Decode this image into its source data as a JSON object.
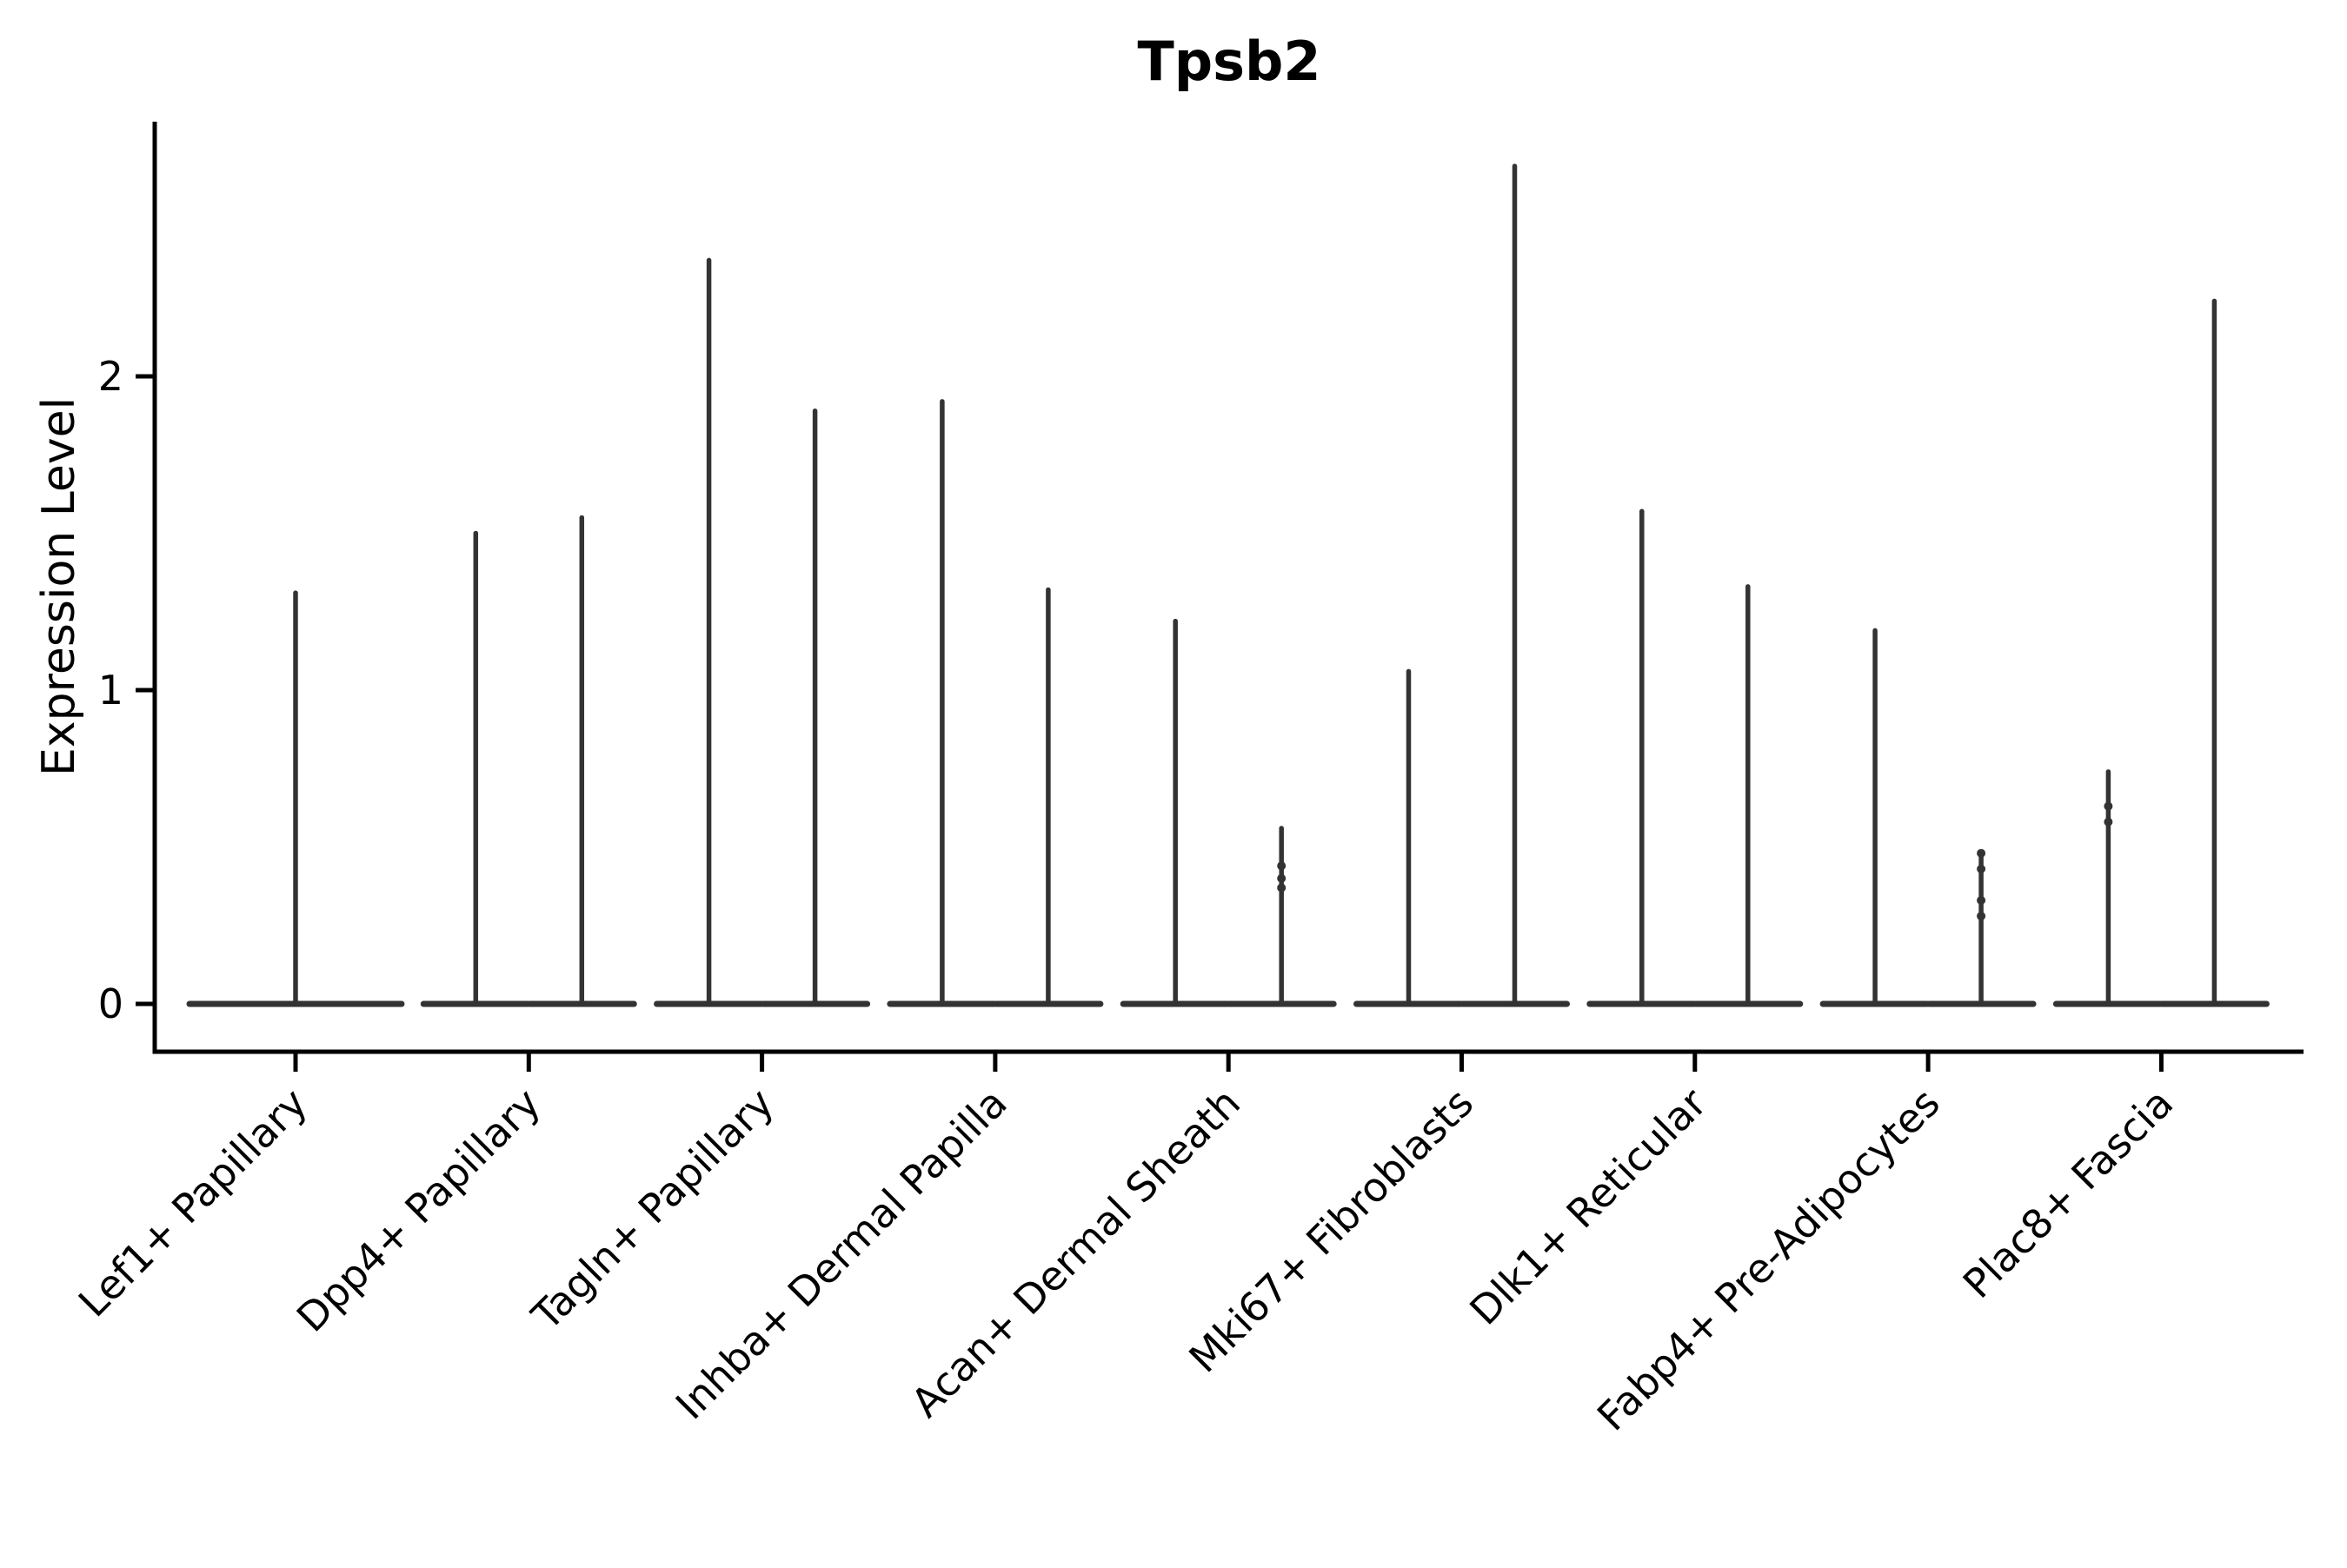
{
  "figure": {
    "title": "Tpsb2",
    "ylabel": "Expression Level"
  },
  "chart_data": {
    "type": "violin",
    "title": "Tpsb2",
    "xlabel": "",
    "ylabel": "Expression Level",
    "ylim": [
      0,
      2.81
    ],
    "yticks": [
      0,
      1,
      2
    ],
    "grid": false,
    "legend": "none",
    "x_tick_rotation": 45,
    "violin_color": "#333333",
    "axis_color": "#000000",
    "categories": [
      "Lef1+ Papillary",
      "Dpp4+ Papillary",
      "Tagln+ Papillary",
      "Inhba+ Dermal Papilla",
      "Acan+ Dermal Sheath",
      "Mki67+ Fibroblasts",
      "Dlk1+ Reticular",
      "Fabp4+ Pre-Adipocytes",
      "Plac8+ Fascia"
    ],
    "groups": [
      {
        "category": "Lef1+ Papillary",
        "violins": [
          {
            "max": 1.31,
            "points": []
          }
        ]
      },
      {
        "category": "Dpp4+ Papillary",
        "violins": [
          {
            "max": 1.5,
            "points": []
          },
          {
            "max": 1.55,
            "points": []
          }
        ]
      },
      {
        "category": "Tagln+ Papillary",
        "violins": [
          {
            "max": 2.37,
            "points": []
          },
          {
            "max": 1.89,
            "points": []
          }
        ]
      },
      {
        "category": "Inhba+ Dermal Papilla",
        "violins": [
          {
            "max": 1.92,
            "points": []
          },
          {
            "max": 1.32,
            "points": []
          }
        ]
      },
      {
        "category": "Acan+ Dermal Sheath",
        "violins": [
          {
            "max": 1.22,
            "points": []
          },
          {
            "max": 0.56,
            "points": [
              0.44,
              0.4,
              0.37
            ]
          }
        ]
      },
      {
        "category": "Mki67+ Fibroblasts",
        "violins": [
          {
            "max": 1.06,
            "points": []
          },
          {
            "max": 2.67,
            "points": []
          }
        ]
      },
      {
        "category": "Dlk1+ Reticular",
        "violins": [
          {
            "max": 1.57,
            "points": []
          },
          {
            "max": 1.33,
            "points": []
          }
        ]
      },
      {
        "category": "Fabp4+ Pre-Adipocytes",
        "violins": [
          {
            "max": 1.19,
            "points": []
          },
          {
            "max": 0.48,
            "points": [
              0.48,
              0.43,
              0.33,
              0.28
            ]
          }
        ]
      },
      {
        "category": "Plac8+ Fascia",
        "violins": [
          {
            "max": 0.74,
            "points": [
              0.63,
              0.58
            ]
          },
          {
            "max": 2.24,
            "points": []
          }
        ]
      }
    ]
  }
}
